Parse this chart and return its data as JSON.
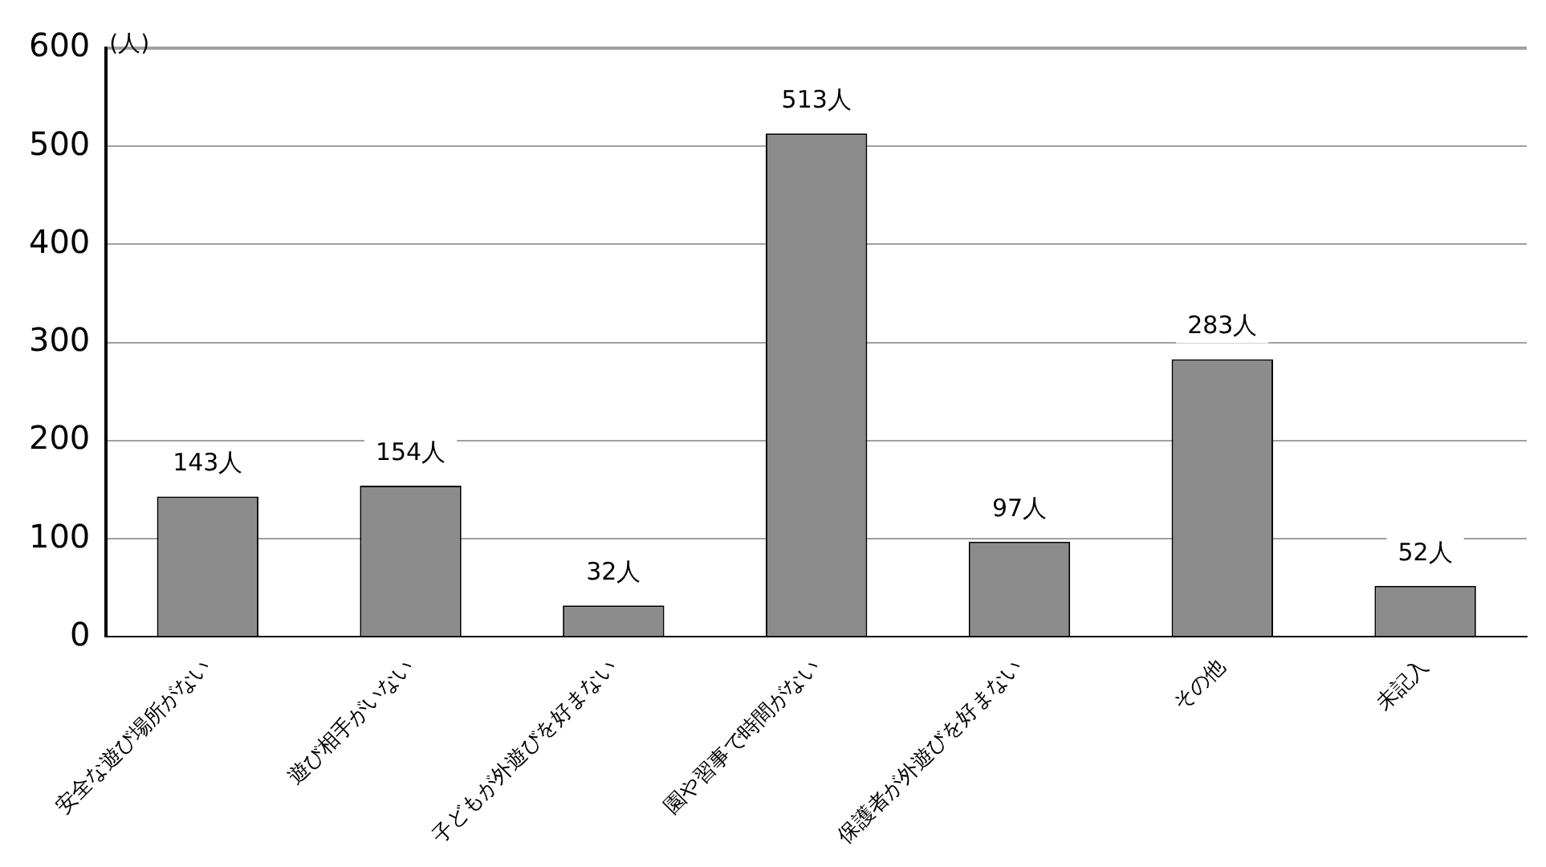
{
  "chart_data": {
    "type": "bar",
    "ylabel": "(人)",
    "categories": [
      "安全な遊び場所がない",
      "遊び相手がいない",
      "子どもが外遊びを好まない",
      "園や習事で時間がない",
      "保護者が外遊びを好まない",
      "その他",
      "未記入"
    ],
    "values": [
      143,
      154,
      32,
      513,
      97,
      283,
      52
    ],
    "value_labels": [
      "143人",
      "154人",
      "32人",
      "513人",
      "97人",
      "283人",
      "52人"
    ],
    "color": "#8c8c8c",
    "ylim": [
      0,
      600
    ],
    "yticks": [
      0,
      100,
      200,
      300,
      400,
      500,
      600
    ],
    "grid": "y",
    "legend": false
  }
}
